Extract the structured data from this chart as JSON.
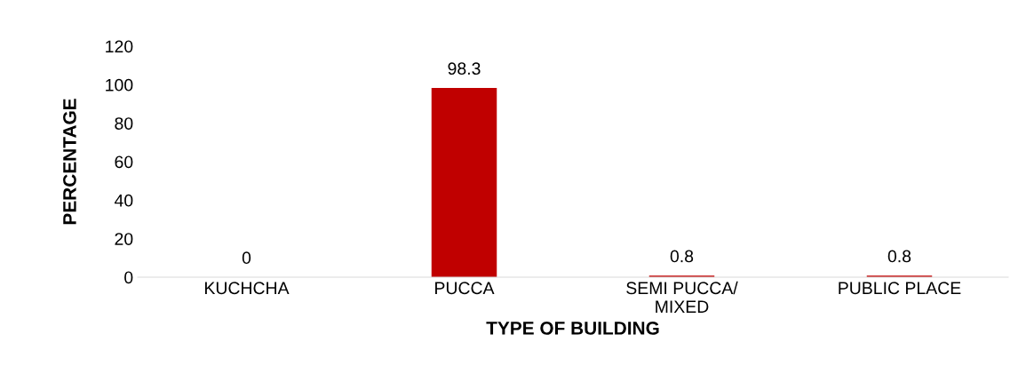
{
  "chart_data": {
    "type": "bar",
    "xlabel": "TYPE OF BUILDING",
    "ylabel": "PERCENTAGE",
    "categories": [
      "KUCHCHA",
      "PUCCA",
      "SEMI PUCCA/\nMIXED",
      "PUBLIC PLACE"
    ],
    "values": [
      0,
      98.3,
      0.8,
      0.8
    ],
    "color": "#c00000",
    "ylim": [
      0,
      120
    ],
    "yticks": [
      0,
      20,
      40,
      60,
      80,
      100,
      120
    ],
    "grid": false,
    "data_labels": true
  }
}
